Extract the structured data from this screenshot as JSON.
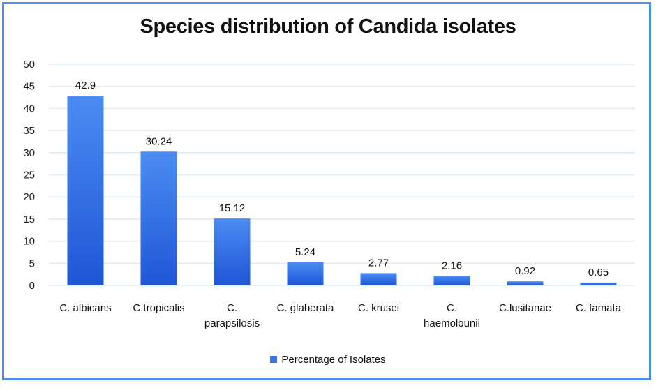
{
  "chart_data": {
    "type": "bar",
    "title": "Species distribution of Candida isolates",
    "categories": [
      [
        "C. albicans"
      ],
      [
        "C.tropicalis"
      ],
      [
        "C.",
        "parapsilosis"
      ],
      [
        "C. glaberata"
      ],
      [
        "C. krusei"
      ],
      [
        "C.",
        "haemolounii"
      ],
      [
        "C.lusitanae"
      ],
      [
        "C. famata"
      ]
    ],
    "series": [
      {
        "name": "Percentage of Isolates",
        "values": [
          42.9,
          30.24,
          15.12,
          5.24,
          2.77,
          2.16,
          0.92,
          0.65
        ],
        "value_labels": [
          "42.9",
          "30.24",
          "15.12",
          "5.24",
          "2.77",
          "2.16",
          "0.92",
          "0.65"
        ],
        "color": "#3a74e6"
      }
    ],
    "ylim": [
      0,
      50
    ],
    "yticks": [
      "0",
      "5",
      "10",
      "15",
      "20",
      "25",
      "30",
      "35",
      "40",
      "45",
      "50"
    ],
    "xlabel": "",
    "ylabel": "",
    "grid": true,
    "legend_position": "bottom"
  },
  "colors": {
    "frame": "#4a8ff0",
    "grid": "#dcebf8",
    "bar_top": "#4a8cf2",
    "bar_bottom": "#1f56d6"
  }
}
